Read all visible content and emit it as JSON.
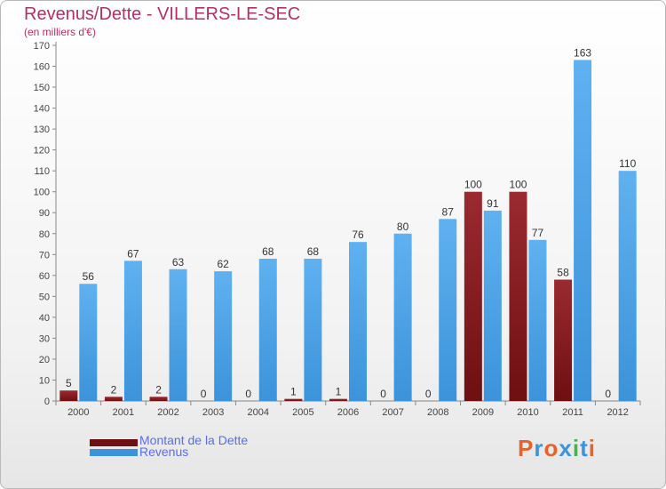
{
  "chart_data": {
    "type": "bar",
    "title": "Revenus/Dette - VILLERS-LE-SEC",
    "subtitle": "(en milliers d'€)",
    "categories": [
      "2000",
      "2001",
      "2002",
      "2003",
      "2004",
      "2005",
      "2006",
      "2007",
      "2008",
      "2009",
      "2010",
      "2011",
      "2012"
    ],
    "series": [
      {
        "name": "Montant de la Dette",
        "color": "#6e0f12",
        "values": [
          5,
          2,
          2,
          0,
          0,
          1,
          1,
          0,
          0,
          100,
          100,
          58,
          0
        ]
      },
      {
        "name": "Revenus",
        "color": "#3c93da",
        "values": [
          56,
          67,
          63,
          62,
          68,
          68,
          76,
          80,
          87,
          91,
          77,
          163,
          110
        ]
      }
    ],
    "ylim": [
      0,
      170
    ],
    "yticks": [
      0,
      10,
      20,
      30,
      40,
      50,
      60,
      70,
      80,
      90,
      100,
      110,
      120,
      130,
      140,
      150,
      160,
      170
    ],
    "grid": false,
    "legend_position": "bottom-left"
  },
  "branding": {
    "logo_text": "Proxiti",
    "logo_colors": [
      "#e8632b",
      "#3c93da",
      "#e8632b",
      "#3c93da",
      "#3fb54a",
      "#3c93da",
      "#e8632b"
    ]
  }
}
